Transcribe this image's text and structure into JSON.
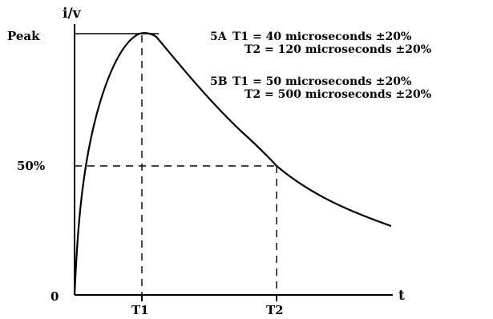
{
  "chart_data": {
    "type": "line",
    "title": "",
    "ylabel": "i/v",
    "xlabel": "t",
    "y_tick_labels": [
      "Peak",
      "50%",
      "0"
    ],
    "x_tick_labels": [
      "T1",
      "T2"
    ],
    "series": [
      {
        "description_points_x_fraction_of_T2": [
          0,
          0.05,
          0.1,
          0.2,
          0.3,
          0.4,
          0.5,
          0.6,
          0.7,
          0.8,
          0.9,
          1.0,
          1.2,
          1.4,
          1.55
        ],
        "y_fraction_of_peak": [
          0,
          0.55,
          0.75,
          0.9,
          0.97,
          0.995,
          1.0,
          0.97,
          0.87,
          0.77,
          0.68,
          0.5,
          0.42,
          0.36,
          0.32
        ]
      }
    ],
    "annotations": [
      {
        "label": "5A",
        "line1": "T1 = 40 microseconds ±20%",
        "line2": "T2 = 120 microseconds ±20%"
      },
      {
        "label": "5B",
        "line1": "T1 = 50 microseconds ±20%",
        "line2": "T2 = 500 microseconds ±20%"
      }
    ]
  }
}
